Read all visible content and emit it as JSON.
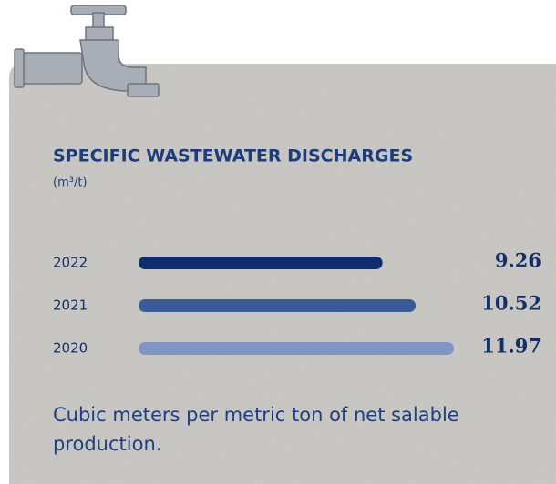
{
  "chart_data": {
    "type": "bar",
    "orientation": "horizontal",
    "title": "SPECIFIC WASTEWATER DISCHARGES",
    "subtitle": "(m³/t)",
    "categories": [
      "2022",
      "2021",
      "2020"
    ],
    "values": [
      9.26,
      10.52,
      11.97
    ],
    "colors": [
      "#0f2d6b",
      "#3b5b97",
      "#8096c0"
    ],
    "note": "Cubic meters per metric ton of net salable production."
  }
}
